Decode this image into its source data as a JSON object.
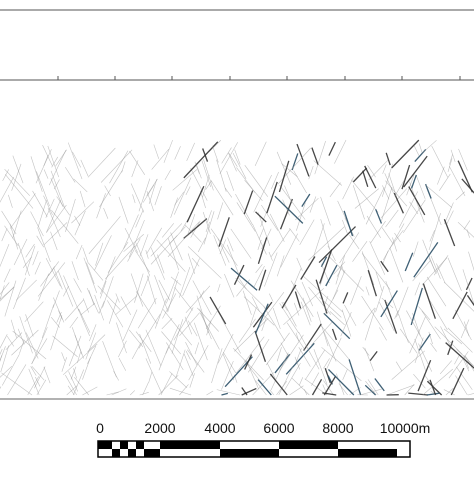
{
  "scale_bar": {
    "labels": [
      "0",
      "2000",
      "4000",
      "6000",
      "8000",
      "10000m"
    ]
  }
}
